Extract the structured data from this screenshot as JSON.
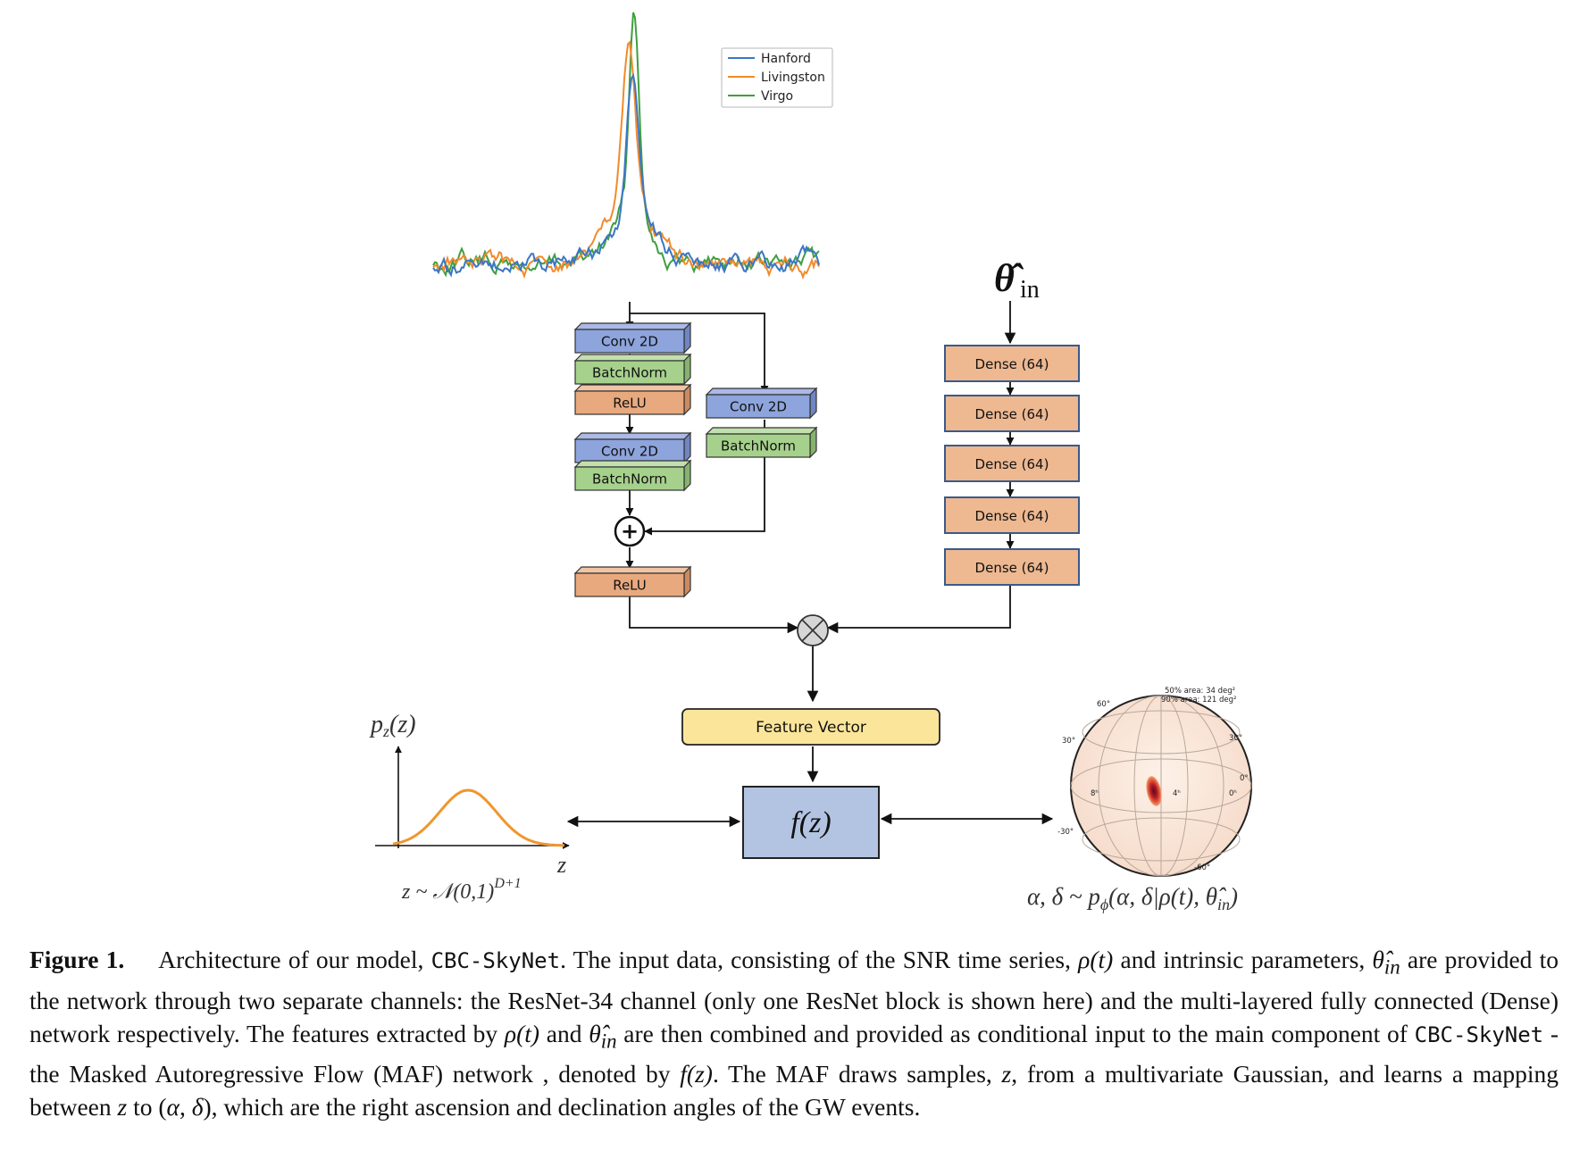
{
  "legend": {
    "items": [
      {
        "label": "Hanford",
        "color": "#3b76c4"
      },
      {
        "label": "Livingston",
        "color": "#f28a2b"
      },
      {
        "label": "Virgo",
        "color": "#3f9f3f"
      }
    ]
  },
  "theta_label": {
    "base": "θ̂",
    "sub": "in"
  },
  "resnet": {
    "main": [
      "Conv 2D",
      "BatchNorm",
      "ReLU",
      "Conv 2D",
      "BatchNorm"
    ],
    "skip": [
      "Conv 2D",
      "BatchNorm"
    ],
    "out": "ReLU",
    "add_symbol": "+"
  },
  "dense": [
    "Dense (64)",
    "Dense (64)",
    "Dense (64)",
    "Dense (64)",
    "Dense (64)"
  ],
  "feature_vector": "Feature Vector",
  "flow": {
    "label": "f(z)"
  },
  "gaussian": {
    "ylabel": "p",
    "ylabel_sub": "z",
    "ylabel_tail": "(z)",
    "xlabel": "z",
    "dist_text": "z ~ 𝒩(0,1)",
    "dist_sup": "D+1"
  },
  "skymap": {
    "area50": "50% area: 34 deg²",
    "area90": "90% area: 121 deg²",
    "ticks": [
      "60°",
      "30°",
      "30°",
      "0°",
      "-30°",
      "8ʰ",
      "4ʰ",
      "0ʰ",
      "-60°"
    ],
    "posterior": "α, δ ~ p",
    "posterior_sub": "ϕ",
    "posterior_tail": "(α, δ|ρ(t), θ̂",
    "posterior_sub2": "in",
    "posterior_end": ")"
  },
  "caption": {
    "label": "Figure 1.",
    "t1": "Architecture of our model,",
    "code1": "CBC-SkyNet",
    "t2": ". The input data, consisting of the SNR time series,",
    "rho": "ρ(t)",
    "t3": "and intrinsic parameters,",
    "theta": "θ̂",
    "theta_sub": "in",
    "t4": "are provided to the network through two separate channels: the ResNet-34 channel (only one ResNet block is shown here) and the multi-layered fully connected (Dense) network respectively. The features extracted by",
    "rho2": "ρ(t)",
    "t5": "and",
    "theta2": "θ̂",
    "theta2_sub": "in",
    "t6": "are then combined and provided as conditional input to the main component of",
    "code2": "CBC-SkyNet",
    "t7": "- the Masked Autoregressive Flow (MAF) network , denoted by",
    "fz": "f(z)",
    "t8": ". The MAF draws samples,",
    "z1": "z",
    "t9": ", from a multivariate Gaussian, and learns a mapping between",
    "z2": "z",
    "t10": "to (",
    "alpha": "α",
    "t11": ",",
    "delta": "δ",
    "t12": "), which are the right ascension and declination angles of the GW events."
  }
}
